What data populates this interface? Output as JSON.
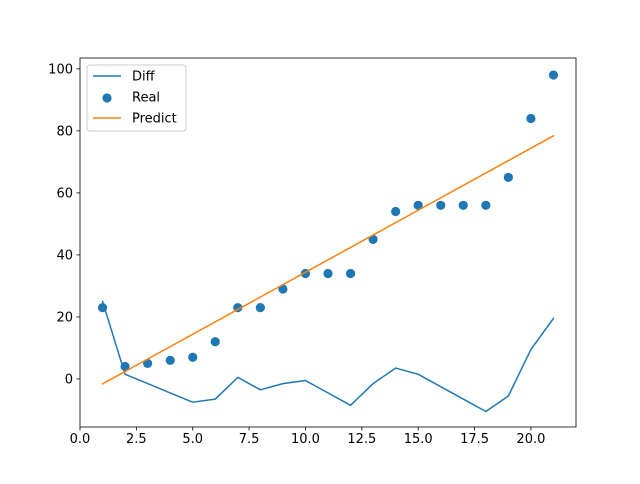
{
  "chart_data": {
    "type": "line",
    "title": "",
    "xlabel": "",
    "ylabel": "",
    "xlim": [
      0.0,
      22.0
    ],
    "ylim": [
      -15.5,
      103.5
    ],
    "xticks": [
      0.0,
      2.5,
      5.0,
      7.5,
      10.0,
      12.5,
      15.0,
      17.5,
      20.0
    ],
    "xtick_labels": [
      "0.0",
      "2.5",
      "5.0",
      "7.5",
      "10.0",
      "12.5",
      "15.0",
      "17.5",
      "20.0"
    ],
    "yticks": [
      0,
      20,
      40,
      60,
      80,
      100
    ],
    "ytick_labels": [
      "0",
      "20",
      "40",
      "60",
      "80",
      "100"
    ],
    "grid": false,
    "legend_position": "top-left",
    "series": [
      {
        "name": "Diff",
        "kind": "line",
        "color": "#1f77b4",
        "x": [
          1,
          2,
          3,
          4,
          5,
          6,
          7,
          8,
          9,
          10,
          11,
          12,
          13,
          14,
          15,
          16,
          17,
          18,
          19,
          20,
          21
        ],
        "y": [
          25,
          1.5,
          -1.5,
          -4.5,
          -7.5,
          -6.5,
          0.5,
          -3.5,
          -1.5,
          -0.5,
          -4.5,
          -8.5,
          -1.5,
          3.5,
          1.5,
          -2.5,
          -6.5,
          -10.5,
          -5.5,
          9.5,
          19.5
        ]
      },
      {
        "name": "Real",
        "kind": "scatter",
        "color": "#1f77b4",
        "x": [
          1,
          2,
          3,
          4,
          5,
          6,
          7,
          8,
          9,
          10,
          11,
          12,
          13,
          14,
          15,
          16,
          17,
          18,
          19,
          20,
          21
        ],
        "y": [
          23,
          4,
          5,
          6,
          7,
          12,
          23,
          23,
          29,
          34,
          34,
          34,
          45,
          54,
          56,
          56,
          56,
          56,
          65,
          84,
          98
        ]
      },
      {
        "name": "Predict",
        "kind": "line",
        "color": "#ff7f0e",
        "x": [
          1,
          21
        ],
        "y": [
          -1.6,
          78.4
        ]
      }
    ]
  }
}
